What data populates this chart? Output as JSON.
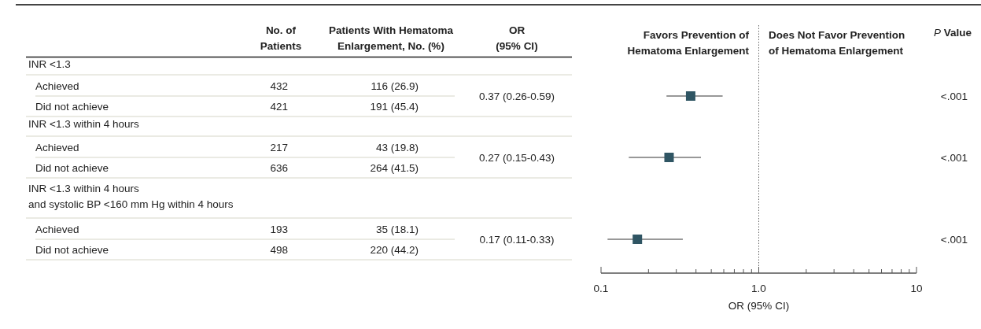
{
  "chart_data": {
    "type": "scatter",
    "orientation": "horizontal",
    "log": "x",
    "marker": "square",
    "categories": [
      null,
      null,
      null
    ],
    "series": [
      {
        "color": "#2f5563",
        "values": [
          0.37,
          0.27,
          0.17
        ],
        "errors": [
          [
            0.26,
            0.59
          ],
          [
            0.15,
            0.43
          ],
          [
            0.11,
            0.33
          ]
        ],
        "value_labels": [
          "0.37 (0.26-0.59)",
          "0.27 (0.15-0.43)",
          "0.17 (0.11-0.33)"
        ]
      }
    ],
    "xlim": [
      0.1,
      10
    ],
    "xticks": [
      {
        "value": 0.1,
        "label": "0.1"
      },
      {
        "value": 0.2,
        "label": null
      },
      {
        "value": 0.3,
        "label": null
      },
      {
        "value": 0.4,
        "label": null
      },
      {
        "value": 0.5,
        "label": null
      },
      {
        "value": 0.6,
        "label": null
      },
      {
        "value": 0.7,
        "label": null
      },
      {
        "value": 0.8,
        "label": null
      },
      {
        "value": 0.9,
        "label": null
      },
      {
        "value": 1,
        "label": "1.0"
      },
      {
        "value": 2,
        "label": null
      },
      {
        "value": 3,
        "label": null
      },
      {
        "value": 4,
        "label": null
      },
      {
        "value": 5,
        "label": null
      },
      {
        "value": 6,
        "label": null
      },
      {
        "value": 7,
        "label": null
      },
      {
        "value": 8,
        "label": null
      },
      {
        "value": 9,
        "label": null
      },
      {
        "value": 10,
        "label": "10"
      }
    ],
    "xlabel": "OR (95% CI)",
    "ref_lines": [
      {
        "axis": "x",
        "value": 1,
        "line_style": "dotted",
        "color": "#666666"
      }
    ],
    "annotations": [
      "No. of\nPatients",
      "Patients With Hematoma\nEnlargement, No. (%)",
      "OR\n(95% CI)",
      "Favors Prevention of\nHematoma Enlargement",
      "Does Not Favor Prevention\nof Hematoma Enlargement",
      "P Value",
      "INR <1.3",
      "Achieved",
      "432",
      "116 (26.9)",
      "Did not achieve",
      "421",
      "191 (45.4)",
      "INR <1.3 within 4 hours",
      "Achieved",
      "217",
      "43 (19.8)",
      "Did not achieve",
      "636",
      "264 (41.5)",
      "INR <1.3 within 4 hours\nand systolic BP <160 mm Hg within 4 hours",
      "Achieved",
      "193",
      "35 (18.1)",
      "Did not achieve",
      "498",
      "220 (44.2)",
      "<.001",
      "<.001",
      "<.001"
    ]
  }
}
